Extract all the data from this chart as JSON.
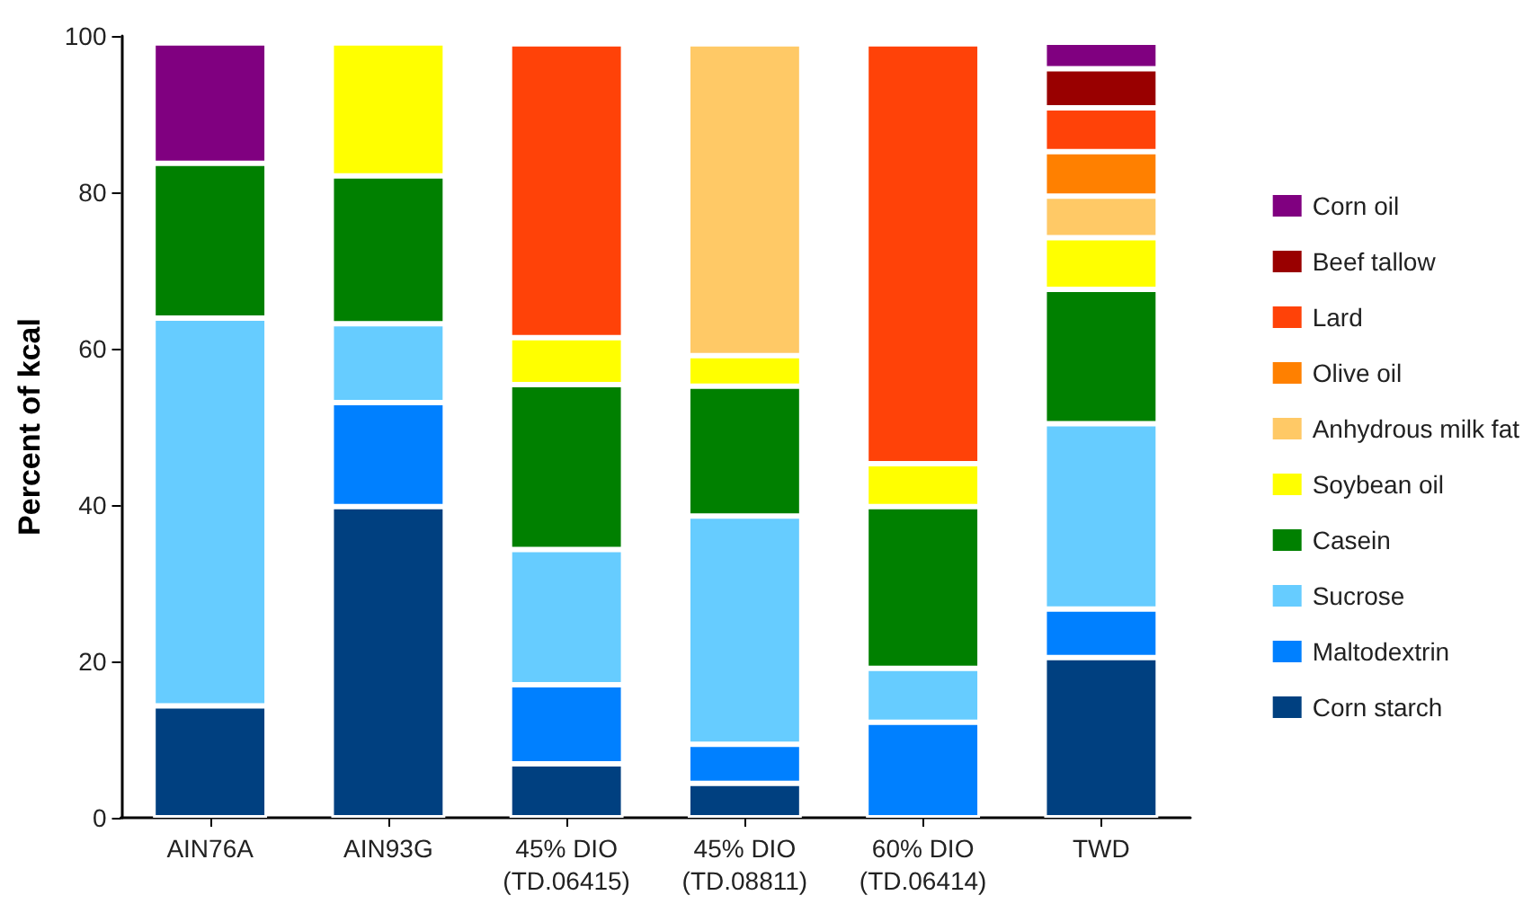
{
  "chart_data": {
    "type": "bar",
    "stacked": true,
    "ylabel": "Percent of kcal",
    "categories": [
      "AIN76A",
      "AIN93G",
      "45% DIO\n(TD.06415)",
      "45% DIO\n(TD.08811)",
      "60% DIO\n(TD.06414)",
      "TWD"
    ],
    "ylim": [
      0,
      100
    ],
    "yticks": [
      0,
      20,
      40,
      60,
      80,
      100
    ],
    "grid": false,
    "legend": "right",
    "series": [
      {
        "name": "Corn starch",
        "color": "#004080",
        "values": [
          14.3,
          39.8,
          6.9,
          4.4,
          null,
          20.5
        ]
      },
      {
        "name": "Maltodextrin",
        "color": "#0080ff",
        "values": [
          null,
          13.3,
          10.1,
          5,
          12.2,
          6.2
        ]
      },
      {
        "name": "Sucrose",
        "color": "#66ccff",
        "values": [
          49.6,
          10.1,
          17.3,
          29.2,
          6.9,
          23.7
        ]
      },
      {
        "name": "Casein",
        "color": "#008000",
        "values": [
          19.8,
          18.9,
          21.1,
          16.6,
          20.7,
          17.2
        ]
      },
      {
        "name": "Soybean oil",
        "color": "#ffff00",
        "values": [
          null,
          17,
          6,
          3.9,
          5.5,
          6.6
        ]
      },
      {
        "name": "Anhydrous milk fat",
        "color": "#ffc966",
        "values": [
          null,
          null,
          null,
          39.9,
          null,
          5.3
        ]
      },
      {
        "name": "Olive oil",
        "color": "#ff8000",
        "values": [
          null,
          null,
          null,
          null,
          null,
          5.7
        ]
      },
      {
        "name": "Lard",
        "color": "#ff4208",
        "values": [
          null,
          null,
          37.6,
          null,
          53.7,
          5.6
        ]
      },
      {
        "name": "Beef tallow",
        "color": "#990000",
        "values": [
          null,
          null,
          null,
          null,
          null,
          5
        ]
      },
      {
        "name": "Corn oil",
        "color": "#800080",
        "values": [
          15.4,
          null,
          null,
          null,
          null,
          3.4
        ]
      }
    ]
  }
}
